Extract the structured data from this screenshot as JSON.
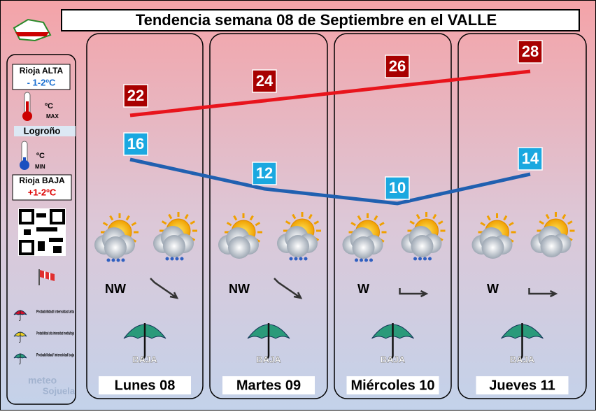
{
  "title": "Tendencia semana 08 de Septiembre en el VALLE",
  "legend": {
    "alta_label": "Rioja ALTA",
    "alta_value": "- 1-2ºC",
    "max_unit": "ºC",
    "max_label": "MAX",
    "city": "Logroño",
    "min_unit": "ºC",
    "min_label": "MIN",
    "baja_label": "Rioja BAJA",
    "baja_value": "+1-2ºC",
    "rain": [
      "Probabilidad/ intensidad alta",
      "Probabilidad alta intensidad media/baja",
      "Probabilidad/ intensidad baja"
    ],
    "logo": [
      "meteo",
      "Sojuela"
    ]
  },
  "days": [
    {
      "name": "Lunes 08",
      "max": 22,
      "min": 16,
      "wind": "NW",
      "rain": "BAJA"
    },
    {
      "name": "Martes 09",
      "max": 24,
      "min": 12,
      "wind": "NW",
      "rain": "BAJA"
    },
    {
      "name": "Miércoles 10",
      "max": 26,
      "min": 10,
      "wind": "W",
      "rain": "BAJA"
    },
    {
      "name": "Jueves 11",
      "max": 28,
      "min": 14,
      "wind": "W",
      "rain": "BAJA"
    }
  ]
}
